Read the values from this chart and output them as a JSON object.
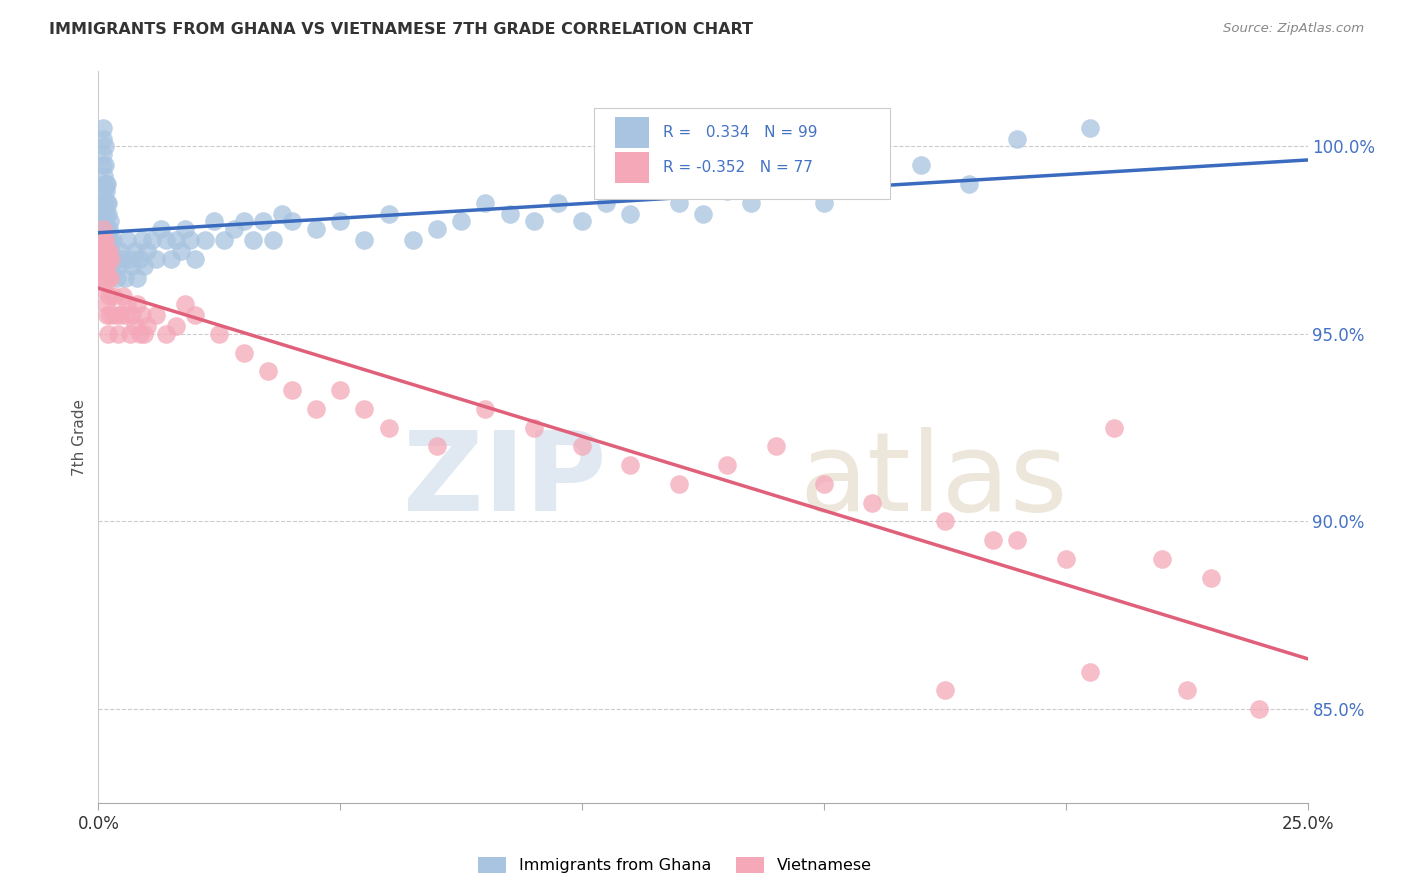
{
  "title": "IMMIGRANTS FROM GHANA VS VIETNAMESE 7TH GRADE CORRELATION CHART",
  "source": "Source: ZipAtlas.com",
  "ylabel": "7th Grade",
  "y_ticks": [
    85.0,
    90.0,
    95.0,
    100.0
  ],
  "y_tick_labels": [
    "85.0%",
    "90.0%",
    "95.0%",
    "100.0%"
  ],
  "x_range": [
    0.0,
    25.0
  ],
  "y_range": [
    82.5,
    102.0
  ],
  "R_ghana": 0.334,
  "N_ghana": 99,
  "R_vietnamese": -0.352,
  "N_vietnamese": 77,
  "ghana_color": "#a8c4e0",
  "vietnamese_color": "#f4a8b8",
  "ghana_line_color": "#3a6bbf",
  "vietnamese_line_color": "#e0607a",
  "ghana_x": [
    0.05,
    0.07,
    0.08,
    0.08,
    0.09,
    0.09,
    0.1,
    0.1,
    0.1,
    0.11,
    0.11,
    0.12,
    0.12,
    0.13,
    0.13,
    0.14,
    0.14,
    0.15,
    0.15,
    0.15,
    0.16,
    0.16,
    0.17,
    0.17,
    0.18,
    0.18,
    0.19,
    0.19,
    0.2,
    0.2,
    0.21,
    0.22,
    0.23,
    0.23,
    0.24,
    0.25,
    0.25,
    0.3,
    0.35,
    0.38,
    0.4,
    0.45,
    0.5,
    0.55,
    0.6,
    0.65,
    0.7,
    0.75,
    0.8,
    0.85,
    0.9,
    0.95,
    1.0,
    1.1,
    1.2,
    1.3,
    1.4,
    1.5,
    1.6,
    1.7,
    1.8,
    1.9,
    2.0,
    2.2,
    2.4,
    2.6,
    2.8,
    3.0,
    3.2,
    3.4,
    3.6,
    3.8,
    4.0,
    4.5,
    5.0,
    5.5,
    6.0,
    6.5,
    7.0,
    7.5,
    8.0,
    8.5,
    9.0,
    9.5,
    10.0,
    10.5,
    11.0,
    11.5,
    12.0,
    12.5,
    13.0,
    13.5,
    14.0,
    15.0,
    16.0,
    17.0,
    18.0,
    19.0,
    20.5
  ],
  "ghana_y": [
    96.5,
    97.2,
    96.8,
    97.5,
    98.2,
    99.5,
    100.2,
    99.8,
    100.5,
    99.0,
    98.5,
    98.8,
    99.2,
    98.5,
    100.0,
    99.5,
    98.0,
    97.8,
    99.0,
    98.2,
    97.5,
    98.8,
    97.2,
    98.5,
    97.8,
    99.0,
    97.5,
    98.2,
    97.0,
    98.5,
    97.8,
    97.5,
    97.0,
    98.0,
    97.5,
    96.8,
    97.2,
    97.5,
    97.0,
    96.5,
    96.8,
    97.2,
    97.0,
    96.5,
    97.5,
    97.0,
    96.8,
    97.2,
    96.5,
    97.0,
    97.5,
    96.8,
    97.2,
    97.5,
    97.0,
    97.8,
    97.5,
    97.0,
    97.5,
    97.2,
    97.8,
    97.5,
    97.0,
    97.5,
    98.0,
    97.5,
    97.8,
    98.0,
    97.5,
    98.0,
    97.5,
    98.2,
    98.0,
    97.8,
    98.0,
    97.5,
    98.2,
    97.5,
    97.8,
    98.0,
    98.5,
    98.2,
    98.0,
    98.5,
    98.0,
    98.5,
    98.2,
    98.8,
    98.5,
    98.2,
    98.8,
    98.5,
    99.0,
    98.5,
    99.0,
    99.5,
    99.0,
    100.2,
    100.5
  ],
  "vietnamese_x": [
    0.05,
    0.06,
    0.07,
    0.08,
    0.09,
    0.1,
    0.1,
    0.11,
    0.12,
    0.12,
    0.13,
    0.13,
    0.14,
    0.14,
    0.15,
    0.15,
    0.16,
    0.17,
    0.18,
    0.18,
    0.19,
    0.2,
    0.2,
    0.21,
    0.22,
    0.23,
    0.24,
    0.25,
    0.3,
    0.35,
    0.4,
    0.45,
    0.5,
    0.55,
    0.6,
    0.65,
    0.7,
    0.75,
    0.8,
    0.85,
    0.9,
    0.95,
    1.0,
    1.2,
    1.4,
    1.6,
    1.8,
    2.0,
    2.5,
    3.0,
    3.5,
    4.0,
    4.5,
    5.0,
    5.5,
    6.0,
    7.0,
    8.0,
    9.0,
    10.0,
    11.0,
    12.0,
    13.0,
    14.0,
    15.0,
    16.0,
    17.5,
    18.5,
    19.0,
    20.0,
    21.0,
    22.0,
    23.0,
    17.5,
    20.5,
    22.5,
    24.0
  ],
  "vietnamese_y": [
    97.5,
    96.8,
    97.2,
    96.5,
    97.8,
    96.2,
    97.0,
    97.5,
    96.8,
    97.2,
    96.5,
    97.0,
    96.8,
    97.5,
    95.8,
    97.2,
    96.5,
    97.0,
    95.5,
    96.8,
    97.0,
    95.0,
    96.5,
    97.2,
    96.0,
    95.5,
    96.5,
    97.0,
    96.0,
    95.5,
    95.0,
    95.5,
    96.0,
    95.5,
    95.8,
    95.0,
    95.5,
    95.2,
    95.8,
    95.0,
    95.5,
    95.0,
    95.2,
    95.5,
    95.0,
    95.2,
    95.8,
    95.5,
    95.0,
    94.5,
    94.0,
    93.5,
    93.0,
    93.5,
    93.0,
    92.5,
    92.0,
    93.0,
    92.5,
    92.0,
    91.5,
    91.0,
    91.5,
    92.0,
    91.0,
    90.5,
    90.0,
    89.5,
    89.5,
    89.0,
    92.5,
    89.0,
    88.5,
    85.5,
    86.0,
    85.5,
    85.0
  ]
}
